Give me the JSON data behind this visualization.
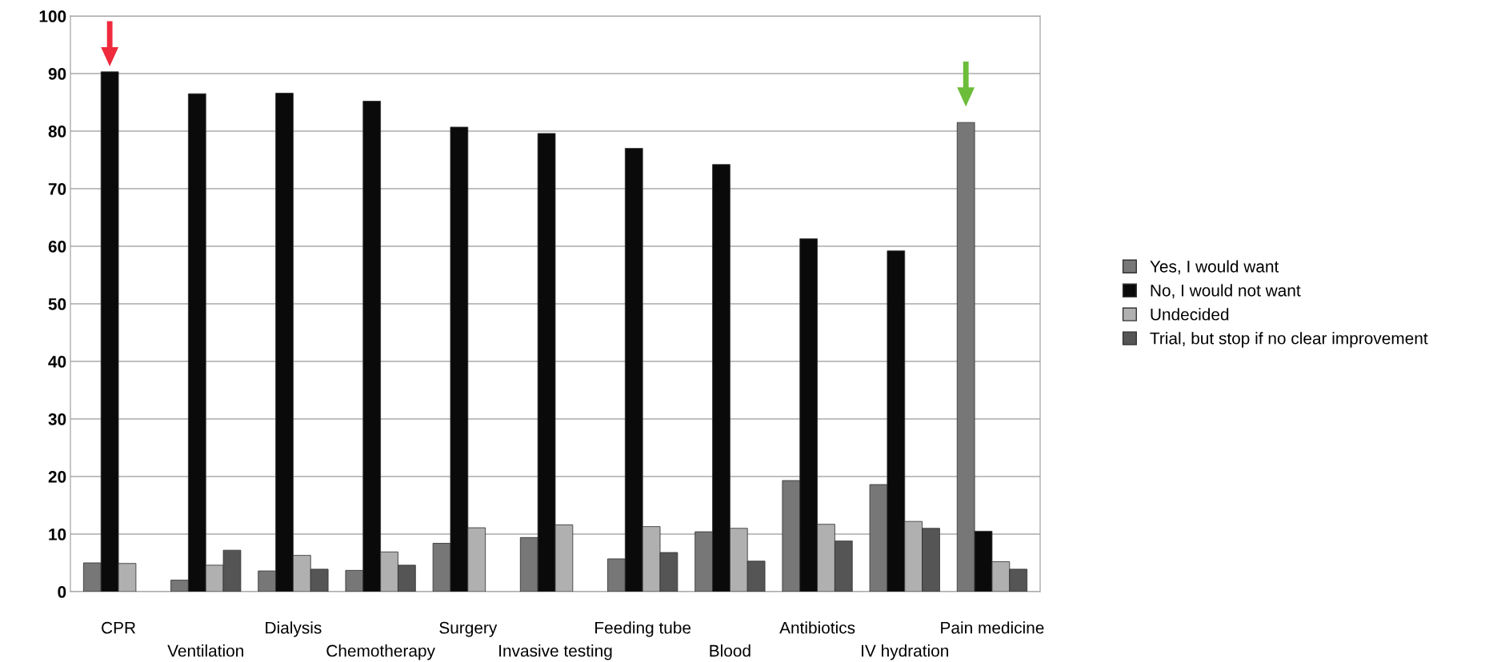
{
  "chart_data": {
    "type": "bar",
    "categories": [
      "CPR",
      "Ventilation",
      "Dialysis",
      "Chemotherapy",
      "Surgery",
      "Invasive testing",
      "Feeding tube",
      "Blood",
      "Antibiotics",
      "IV hydration",
      "Pain medicine"
    ],
    "series": [
      {
        "name": "Yes, I would want",
        "color": "#777777",
        "values": [
          5,
          2,
          3.6,
          3.7,
          8.4,
          9.4,
          5.7,
          10.4,
          19.3,
          18.6,
          81.5
        ]
      },
      {
        "name": "No, I would not want",
        "color": "#0a0a0a",
        "values": [
          90.3,
          86.5,
          86.6,
          85.2,
          80.7,
          79.6,
          77,
          74.2,
          61.3,
          59.2,
          10.5
        ]
      },
      {
        "name": "Undecided",
        "color": "#b0b0b0",
        "values": [
          4.9,
          4.6,
          6.3,
          6.9,
          11.1,
          11.6,
          11.3,
          11,
          11.7,
          12.2,
          5.2
        ]
      },
      {
        "name": "Trial, but stop if no clear improvement",
        "color": "#555555",
        "values": [
          null,
          7.2,
          3.9,
          4.6,
          null,
          null,
          6.8,
          5.3,
          8.8,
          11,
          3.9
        ]
      }
    ],
    "ylim": [
      0,
      100
    ],
    "yticks": [
      0,
      10,
      20,
      30,
      40,
      50,
      60,
      70,
      80,
      90,
      100
    ],
    "grid": "y",
    "legend": "right"
  }
}
